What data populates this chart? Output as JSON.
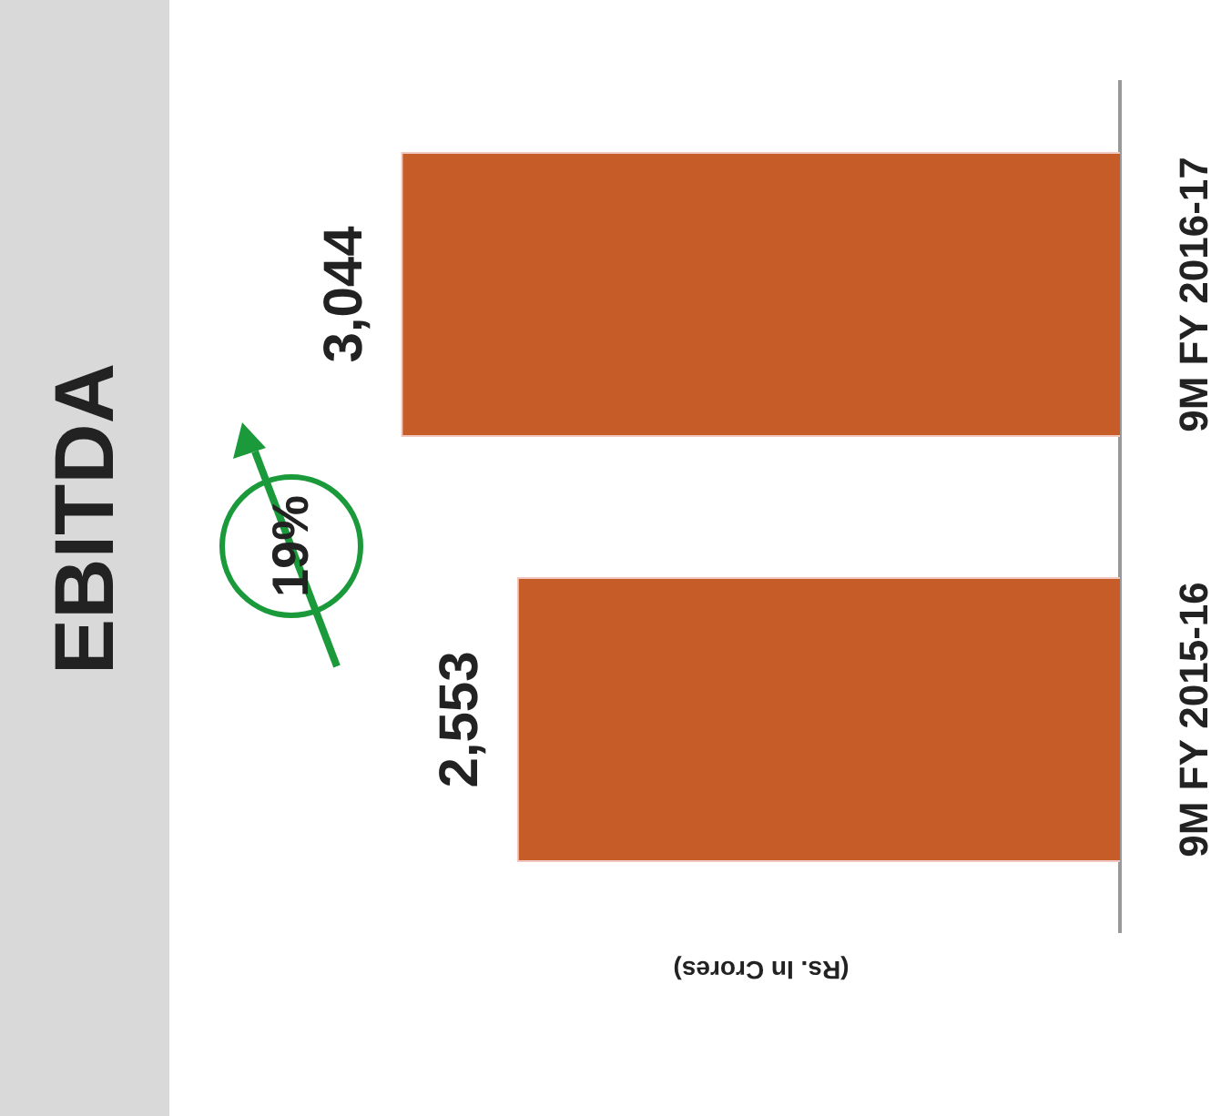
{
  "chart_data": {
    "type": "bar",
    "orientation": "horizontal",
    "title": "EBITDA",
    "xlabel": "(Rs. In Crores)",
    "categories": [
      "9M FY 2016-17",
      "9M FY 2015-16"
    ],
    "values": [
      3044,
      2553
    ],
    "value_labels": [
      "3,044",
      "2,553"
    ],
    "color": "#c65c28",
    "grid": false,
    "legend": false,
    "annotations": [
      "19%"
    ]
  }
}
